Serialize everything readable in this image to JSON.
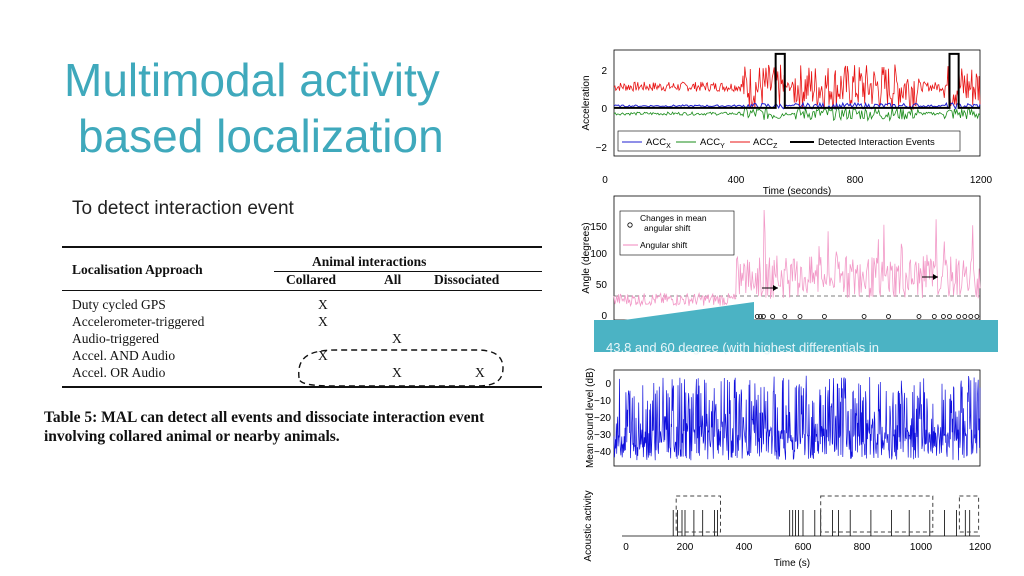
{
  "slide": {
    "title_line1": "Multimodal activity",
    "title_line2": "based localization",
    "subtitle": "To detect interaction event",
    "banner_text": "43.8 and 60 degree (with highest differentials in"
  },
  "table": {
    "header_left": "Localisation Approach",
    "header_group": "Animal interactions",
    "col1": "Collared",
    "col2": "All",
    "col3": "Dissociated",
    "rows": [
      {
        "name": "Duty cycled GPS",
        "collared": "X",
        "all": "",
        "dissociated": ""
      },
      {
        "name": "Accelerometer-triggered",
        "collared": "X",
        "all": "",
        "dissociated": ""
      },
      {
        "name": "Audio-triggered",
        "collared": "",
        "all": "X",
        "dissociated": ""
      },
      {
        "name": "Accel. AND Audio",
        "collared": "X",
        "all": "",
        "dissociated": ""
      },
      {
        "name": "Accel. OR Audio",
        "collared": "",
        "all": "X",
        "dissociated": "X"
      }
    ],
    "caption": "Table 5: MAL can detect all events and dissociate interaction event involving collared animal or nearby animals."
  },
  "colors": {
    "title": "#3fa9bc",
    "acc_x": "#1f1fd0",
    "acc_y": "#1a8c1a",
    "acc_z": "#e81414",
    "angle": "#f29ac8",
    "sound": "#1010dd",
    "banner": "#4bb3c4"
  },
  "chart_data": [
    {
      "type": "line",
      "ylabel": "Acceleration",
      "xlabel": "Time (seconds)",
      "xlim": [
        0,
        1200
      ],
      "ylim": [
        -2.5,
        3
      ],
      "xticks": [
        "0",
        "400",
        "800",
        "1200"
      ],
      "yticks": [
        "2",
        "0",
        "−2"
      ],
      "series": [
        {
          "name": "ACC_X",
          "level": 0.1
        },
        {
          "name": "ACC_Y",
          "level": -0.3
        },
        {
          "name": "ACC_Z",
          "level": 1.1
        },
        {
          "name": "Detected Interaction Events",
          "events": [
            [
              530,
              560
            ],
            [
              1100,
              1130
            ]
          ]
        }
      ],
      "legend_labels": {
        "x": "ACC",
        "x_sub": "X",
        "y": "ACC",
        "y_sub": "Y",
        "z": "ACC",
        "z_sub": "Z",
        "events": "Detected Interaction Events"
      }
    },
    {
      "type": "line",
      "ylabel": "Angle (degrees)",
      "xlim": [
        0,
        1200
      ],
      "ylim": [
        -5,
        170
      ],
      "yticks": [
        "150",
        "100",
        "50",
        "0"
      ],
      "xtick_partial": "00",
      "series": [
        {
          "name": "Changes in mean angular shift",
          "line1": "Changes in mean",
          "line2": "angular shift"
        },
        {
          "name": "Angular shift",
          "level": 30
        }
      ],
      "threshold": 30
    },
    {
      "type": "line",
      "ylabel": "Mean sound level (dB)",
      "xlim": [
        0,
        1200
      ],
      "ylim": [
        -45,
        5
      ],
      "yticks": [
        "0",
        "−10",
        "−20",
        "−30",
        "−40"
      ]
    },
    {
      "type": "bar",
      "ylabel": "Acoustic activity",
      "xlabel": "Time (s)",
      "xlim": [
        0,
        1200
      ],
      "xticks": [
        "0",
        "200",
        "400",
        "600",
        "800",
        "1000",
        "1200"
      ],
      "events": [
        160,
        175,
        190,
        200,
        230,
        260,
        300,
        310,
        555,
        565,
        575,
        585,
        600,
        640,
        660,
        700,
        720,
        760,
        830,
        900,
        960,
        1030,
        1080,
        1120,
        1150,
        1165
      ],
      "groups": [
        [
          170,
          320
        ],
        [
          660,
          1040
        ],
        [
          1130,
          1195
        ]
      ]
    }
  ]
}
